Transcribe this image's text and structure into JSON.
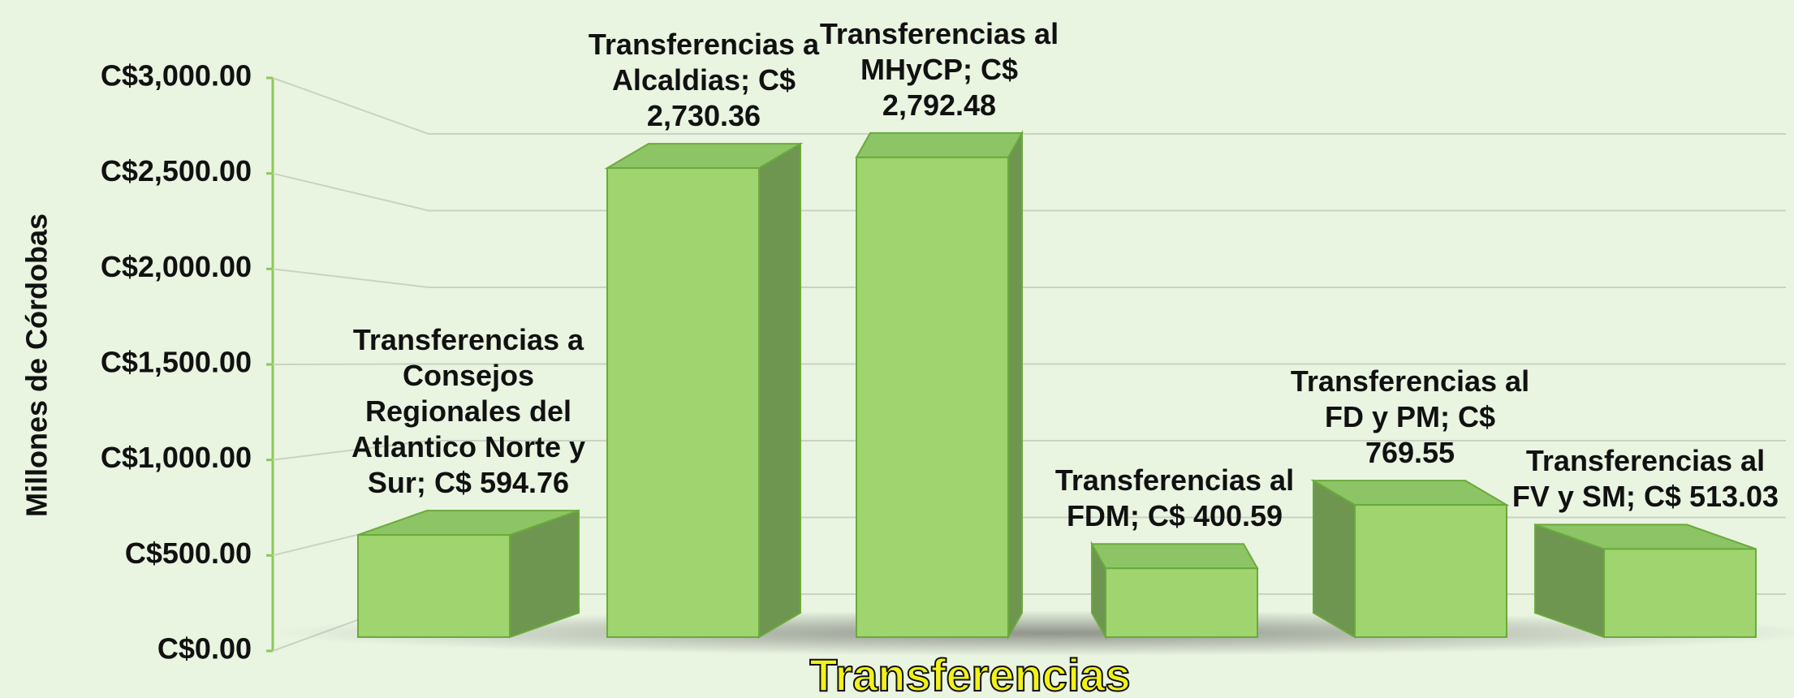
{
  "chart_data": {
    "type": "bar3d",
    "axis_labels": {
      "y": "Millones de Córdobas",
      "x": "Transferencias"
    },
    "categories": [
      "Transferencias a Consejos Regionales del Atlantico Norte y Sur;",
      "Transferencias a Alcaldias;",
      "Transferencias al MHyCP;",
      "Transferencias al FDM;",
      "Transferencias al FD y PM;",
      "Transferencias al FV y SM;"
    ],
    "values": [
      594.76,
      2730.36,
      2792.48,
      400.59,
      769.55,
      513.03
    ],
    "value_labels": [
      "C$ 594.76",
      "C$ 2,730.36",
      "C$ 2,792.48",
      "C$ 400.59",
      "C$ 769.55",
      "C$ 513.03"
    ],
    "color": "#9fd46f",
    "ylim": [
      0,
      3000
    ],
    "yticks": [
      {
        "value": 0,
        "label": "C$0.00"
      },
      {
        "value": 500,
        "label": "C$500.00"
      },
      {
        "value": 1000,
        "label": "C$1,000.00"
      },
      {
        "value": 1500,
        "label": "C$1,500.00"
      },
      {
        "value": 2000,
        "label": "C$2,000.00"
      },
      {
        "value": 2500,
        "label": "C$2,500.00"
      },
      {
        "value": 3000,
        "label": "C$3,000.00"
      }
    ],
    "grid": true
  }
}
